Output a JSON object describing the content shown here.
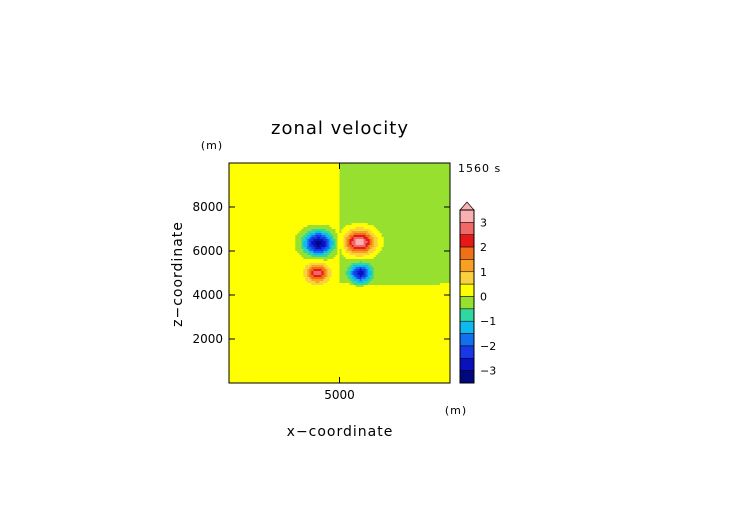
{
  "chart_data": {
    "type": "heatmap",
    "title": "zonal velocity",
    "xlabel": "x−coordinate",
    "ylabel": "z−coordinate",
    "x_unit": "(m)",
    "y_unit": "(m)",
    "time_label": "1560 s",
    "xlim": [
      0,
      10000
    ],
    "ylim": [
      0,
      10000
    ],
    "x_ticks": [
      {
        "value": 5000,
        "label": "5000"
      }
    ],
    "y_ticks": [
      {
        "value": 2000,
        "label": "2000"
      },
      {
        "value": 4000,
        "label": "4000"
      },
      {
        "value": 6000,
        "label": "6000"
      },
      {
        "value": 8000,
        "label": "8000"
      }
    ],
    "colorbar": {
      "min": -3.5,
      "max": 3.5,
      "extend_max": true,
      "tick_labels": [
        {
          "value": 3,
          "label": "3"
        },
        {
          "value": 2,
          "label": "2"
        },
        {
          "value": 1,
          "label": "1"
        },
        {
          "value": 0,
          "label": "0"
        },
        {
          "value": -1,
          "label": "−1"
        },
        {
          "value": -2,
          "label": "−2"
        },
        {
          "value": -3,
          "label": "−3"
        }
      ],
      "bands": [
        {
          "range": [
            3.0,
            3.5
          ],
          "color": "#f8b0b0"
        },
        {
          "range": [
            2.5,
            3.0
          ],
          "color": "#f06868"
        },
        {
          "range": [
            2.0,
            2.5
          ],
          "color": "#e81818"
        },
        {
          "range": [
            1.5,
            2.0
          ],
          "color": "#f07018"
        },
        {
          "range": [
            1.0,
            1.5
          ],
          "color": "#f8a020"
        },
        {
          "range": [
            0.5,
            1.0
          ],
          "color": "#f8d040"
        },
        {
          "range": [
            0.0,
            0.5
          ],
          "color": "#ffff00"
        },
        {
          "range": [
            -0.5,
            0.0
          ],
          "color": "#98e030"
        },
        {
          "range": [
            -1.0,
            -0.5
          ],
          "color": "#30d8a0"
        },
        {
          "range": [
            -1.5,
            -1.0
          ],
          "color": "#10b8f0"
        },
        {
          "range": [
            -2.0,
            -1.5
          ],
          "color": "#1070f0"
        },
        {
          "range": [
            -2.5,
            -2.0
          ],
          "color": "#1838e8"
        },
        {
          "range": [
            -3.0,
            -2.5
          ],
          "color": "#0810c0"
        },
        {
          "range": [
            -3.5,
            -3.0
          ],
          "color": "#000880"
        }
      ]
    },
    "features": [
      {
        "x": 4050,
        "z": 6350,
        "peak": -3.4,
        "sx": 650,
        "sz": 520
      },
      {
        "x": 5900,
        "z": 6400,
        "peak": 3.5,
        "sx": 650,
        "sz": 520
      },
      {
        "x": 4000,
        "z": 5000,
        "peak": 2.6,
        "sx": 430,
        "sz": 380
      },
      {
        "x": 5950,
        "z": 5000,
        "peak": -2.7,
        "sx": 430,
        "sz": 380
      },
      {
        "x": 4250,
        "z": 3450,
        "peak": 0.3,
        "sx": 380,
        "sz": 230
      },
      {
        "x": 5600,
        "z": 3450,
        "peak": 0.3,
        "sx": 380,
        "sz": 230
      }
    ],
    "background": [
      {
        "region": "left",
        "value": 0.2
      },
      {
        "region": "right-upper",
        "value": -0.2
      },
      {
        "region": "right-lower",
        "value": 0.2
      }
    ]
  }
}
